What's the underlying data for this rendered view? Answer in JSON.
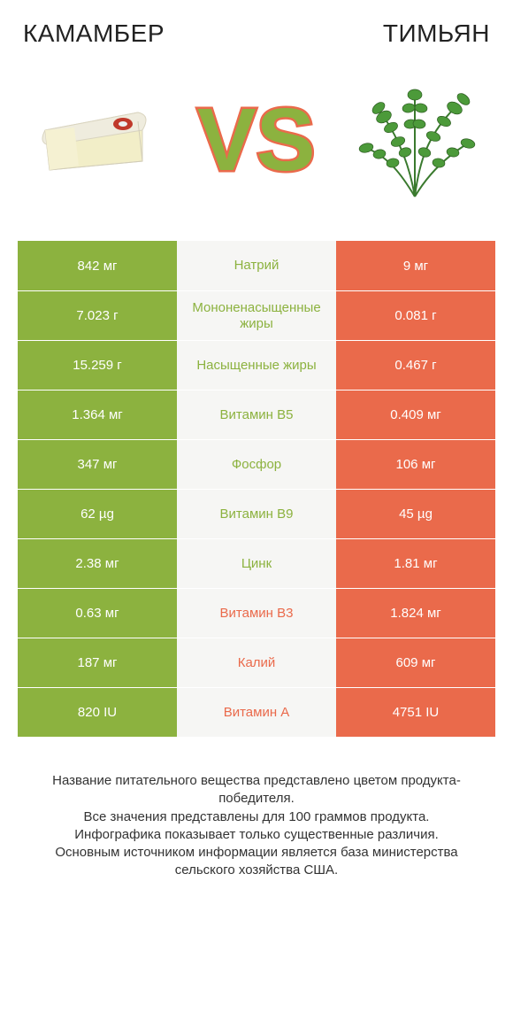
{
  "colors": {
    "green": "#8cb23f",
    "red": "#ea6a4b",
    "mid_bg": "#f6f6f4",
    "thyme_green": "#3a7a2e",
    "cheese_rind": "#e8e4d8",
    "cheese_body": "#f2eec8"
  },
  "header": {
    "left_title": "КАМАМБЕР",
    "right_title": "ТИМЬЯН",
    "vs_text": "VS"
  },
  "rows": [
    {
      "left": "842 мг",
      "mid": "Натрий",
      "right": "9 мг",
      "winner": "left"
    },
    {
      "left": "7.023 г",
      "mid": "Мононенасыщенные жиры",
      "right": "0.081 г",
      "winner": "left"
    },
    {
      "left": "15.259 г",
      "mid": "Насыщенные жиры",
      "right": "0.467 г",
      "winner": "left"
    },
    {
      "left": "1.364 мг",
      "mid": "Витамин B5",
      "right": "0.409 мг",
      "winner": "left"
    },
    {
      "left": "347 мг",
      "mid": "Фосфор",
      "right": "106 мг",
      "winner": "left"
    },
    {
      "left": "62 µg",
      "mid": "Витамин B9",
      "right": "45 µg",
      "winner": "left"
    },
    {
      "left": "2.38 мг",
      "mid": "Цинк",
      "right": "1.81 мг",
      "winner": "left"
    },
    {
      "left": "0.63 мг",
      "mid": "Витамин B3",
      "right": "1.824 мг",
      "winner": "right"
    },
    {
      "left": "187 мг",
      "mid": "Калий",
      "right": "609 мг",
      "winner": "right"
    },
    {
      "left": "820 IU",
      "mid": "Витамин A",
      "right": "4751 IU",
      "winner": "right"
    }
  ],
  "footnote": "Название питательного вещества представлено цветом продукта-победителя.\nВсе значения представлены для 100 граммов продукта.\nИнфографика показывает только существенные различия.\nОсновным источником информации является база министерства сельского хозяйства США."
}
